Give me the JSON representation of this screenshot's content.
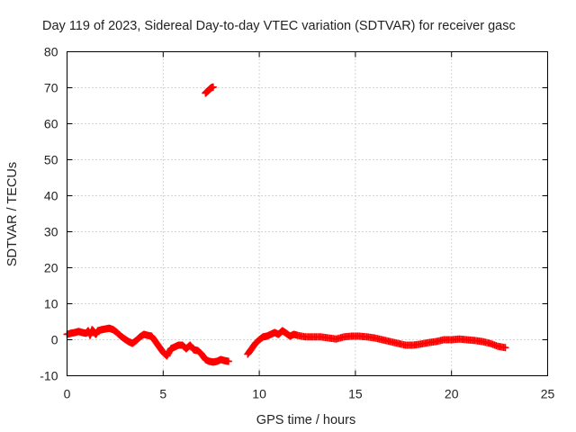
{
  "chart_data": {
    "type": "scatter",
    "title": "Day 119 of 2023, Sidereal Day-to-day VTEC variation (SDTVAR) for receiver gasc",
    "xlabel": "GPS time / hours",
    "ylabel": "SDTVAR / TECUs",
    "xlim": [
      0,
      25
    ],
    "ylim": [
      -10,
      80
    ],
    "xticks": [
      0,
      5,
      10,
      15,
      20,
      25
    ],
    "yticks": [
      -10,
      0,
      10,
      20,
      30,
      40,
      50,
      60,
      70,
      80
    ],
    "grid": true,
    "marker": "plus",
    "color": "#ff0000",
    "series": [
      {
        "name": "SDTVAR",
        "x": [
          0.0,
          0.2,
          0.4,
          0.6,
          0.8,
          1.0,
          1.1,
          1.2,
          1.3,
          1.4,
          1.5,
          1.6,
          1.8,
          2.0,
          2.2,
          2.4,
          2.6,
          2.8,
          3.0,
          3.2,
          3.4,
          3.6,
          3.8,
          4.0,
          4.2,
          4.4,
          4.6,
          4.8,
          5.0,
          5.2,
          5.4,
          5.6,
          5.8,
          6.0,
          6.2,
          6.4,
          6.6,
          6.8,
          7.0,
          7.2,
          7.4,
          7.6,
          7.8,
          8.0,
          8.2,
          8.4,
          7.2,
          7.3,
          7.4,
          7.5,
          7.6,
          9.4,
          9.6,
          9.8,
          10.0,
          10.2,
          10.4,
          10.6,
          10.8,
          11.0,
          11.2,
          11.4,
          11.6,
          11.8,
          12.0,
          12.4,
          12.8,
          13.2,
          13.6,
          14.0,
          14.4,
          14.8,
          15.2,
          15.6,
          16.0,
          16.4,
          16.8,
          17.2,
          17.6,
          18.0,
          18.4,
          18.8,
          19.2,
          19.6,
          20.0,
          20.4,
          20.8,
          21.2,
          21.6,
          22.0,
          22.4,
          22.8
        ],
        "y": [
          1.5,
          1.8,
          2.0,
          2.3,
          2.0,
          1.8,
          2.5,
          1.2,
          2.8,
          2.2,
          1.5,
          2.5,
          2.8,
          3.0,
          3.2,
          2.8,
          2.0,
          1.0,
          0.2,
          -0.5,
          -1.0,
          -0.2,
          0.8,
          1.5,
          1.2,
          1.0,
          -0.5,
          -2.0,
          -3.5,
          -4.5,
          -2.5,
          -2.0,
          -1.5,
          -1.5,
          -2.5,
          -1.5,
          -2.8,
          -3.0,
          -4.0,
          -5.5,
          -6.0,
          -6.2,
          -6.0,
          -5.5,
          -5.8,
          -6.0,
          68.5,
          69.0,
          69.5,
          70.0,
          70.2,
          -4.0,
          -2.5,
          -1.0,
          0.0,
          0.8,
          1.0,
          1.5,
          2.0,
          1.5,
          2.5,
          1.8,
          1.0,
          1.5,
          1.2,
          0.8,
          0.8,
          0.8,
          0.5,
          0.2,
          0.8,
          1.0,
          1.0,
          0.8,
          0.5,
          0.0,
          -0.5,
          -1.0,
          -1.5,
          -1.5,
          -1.2,
          -0.8,
          -0.5,
          0.0,
          0.0,
          0.2,
          0.0,
          -0.2,
          -0.5,
          -1.0,
          -1.8,
          -2.2
        ]
      }
    ]
  }
}
